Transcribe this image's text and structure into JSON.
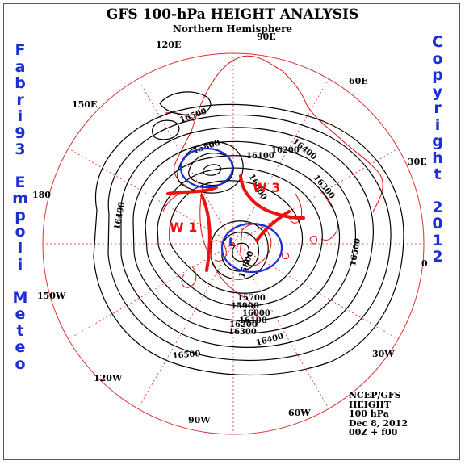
{
  "title": "GFS 100-hPa HEIGHT ANALYSIS",
  "subtitle": "Northern Hemisphere",
  "left_vertical_text": "Fabri93 Empoli Meteo",
  "right_vertical_text": "Copyright 2012",
  "credit": {
    "line1": "NCEP/GFS",
    "line2": "HEIGHT",
    "line3": "100 hPa",
    "line4": "Dec 8, 2012",
    "line5": "00Z + f00"
  },
  "longitude_labels": [
    "90E",
    "60E",
    "30E",
    "0",
    "30W",
    "60W",
    "90W",
    "120W",
    "150W",
    "180",
    "150E",
    "120E"
  ],
  "contour_labels": [
    "16500",
    "15800",
    "16100",
    "16200",
    "16300",
    "16400",
    "16400",
    "16000",
    "16500",
    "15700",
    "15900",
    "16000",
    "16100",
    "16200",
    "16300",
    "16400",
    "16500",
    "15800"
  ],
  "wave_labels": [
    "W 1",
    "W 3"
  ],
  "low_label": "L",
  "colors": {
    "contour": "#000000",
    "grid": "#dd3333",
    "coastline": "#dd1111",
    "trough_axis": "#ee1111",
    "low_circle": "#1a2fd6",
    "signature_text": "#1a2fd6"
  }
}
